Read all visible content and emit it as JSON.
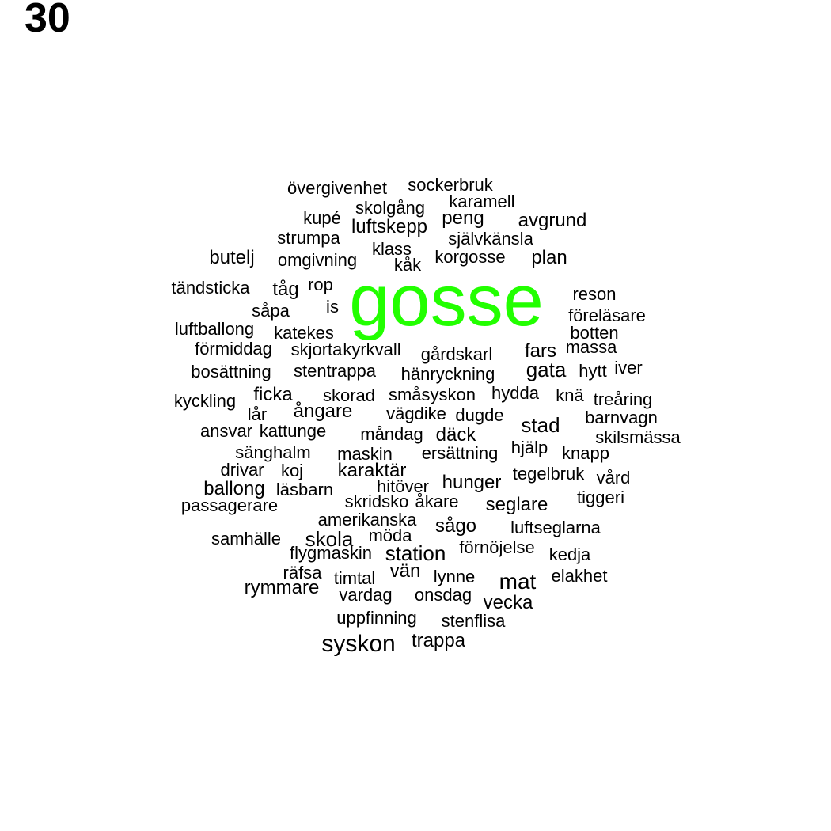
{
  "page_number": "30",
  "colors": {
    "highlight": "#22ff00",
    "text": "#000000",
    "background": "#ffffff"
  },
  "words": [
    {
      "text": "gosse",
      "highlight": true
    },
    {
      "text": "övergivenhet"
    },
    {
      "text": "sockerbruk"
    },
    {
      "text": "karamell"
    },
    {
      "text": "skolgång"
    },
    {
      "text": "kupé"
    },
    {
      "text": "peng"
    },
    {
      "text": "avgrund"
    },
    {
      "text": "luftskepp"
    },
    {
      "text": "strumpa"
    },
    {
      "text": "självkänsla"
    },
    {
      "text": "klass"
    },
    {
      "text": "butelj"
    },
    {
      "text": "omgivning"
    },
    {
      "text": "korgosse"
    },
    {
      "text": "plan"
    },
    {
      "text": "kåk"
    },
    {
      "text": "tändsticka"
    },
    {
      "text": "tåg"
    },
    {
      "text": "rop"
    },
    {
      "text": "reson"
    },
    {
      "text": "såpa"
    },
    {
      "text": "is"
    },
    {
      "text": "föreläsare"
    },
    {
      "text": "luftballong"
    },
    {
      "text": "katekes"
    },
    {
      "text": "botten"
    },
    {
      "text": "förmiddag"
    },
    {
      "text": "skjorta"
    },
    {
      "text": "kyrkvall"
    },
    {
      "text": "gårdskarl"
    },
    {
      "text": "fars"
    },
    {
      "text": "massa"
    },
    {
      "text": "bosättning"
    },
    {
      "text": "stentrappa"
    },
    {
      "text": "hänryckning"
    },
    {
      "text": "gata"
    },
    {
      "text": "hytt"
    },
    {
      "text": "iver"
    },
    {
      "text": "kyckling"
    },
    {
      "text": "ficka"
    },
    {
      "text": "skorad"
    },
    {
      "text": "småsyskon"
    },
    {
      "text": "hydda"
    },
    {
      "text": "knä"
    },
    {
      "text": "treåring"
    },
    {
      "text": "lår"
    },
    {
      "text": "ångare"
    },
    {
      "text": "vägdike"
    },
    {
      "text": "dugde"
    },
    {
      "text": "stad"
    },
    {
      "text": "barnvagn"
    },
    {
      "text": "ansvar"
    },
    {
      "text": "kattunge"
    },
    {
      "text": "måndag"
    },
    {
      "text": "däck"
    },
    {
      "text": "skilsmässa"
    },
    {
      "text": "sänghalm"
    },
    {
      "text": "maskin"
    },
    {
      "text": "ersättning"
    },
    {
      "text": "hjälp"
    },
    {
      "text": "knapp"
    },
    {
      "text": "drivar"
    },
    {
      "text": "koj"
    },
    {
      "text": "karaktär"
    },
    {
      "text": "tegelbruk"
    },
    {
      "text": "vård"
    },
    {
      "text": "ballong"
    },
    {
      "text": "läsbarn"
    },
    {
      "text": "hitöver"
    },
    {
      "text": "hunger"
    },
    {
      "text": "tiggeri"
    },
    {
      "text": "passagerare"
    },
    {
      "text": "skridsko"
    },
    {
      "text": "åkare"
    },
    {
      "text": "seglare"
    },
    {
      "text": "amerikanska"
    },
    {
      "text": "sågo"
    },
    {
      "text": "luftseglarna"
    },
    {
      "text": "samhälle"
    },
    {
      "text": "skola"
    },
    {
      "text": "möda"
    },
    {
      "text": "förnöjelse"
    },
    {
      "text": "flygmaskin"
    },
    {
      "text": "station"
    },
    {
      "text": "kedja"
    },
    {
      "text": "räfsa"
    },
    {
      "text": "vän"
    },
    {
      "text": "timtal"
    },
    {
      "text": "lynne"
    },
    {
      "text": "elakhet"
    },
    {
      "text": "mat"
    },
    {
      "text": "rymmare"
    },
    {
      "text": "vardag"
    },
    {
      "text": "onsdag"
    },
    {
      "text": "vecka"
    },
    {
      "text": "uppfinning"
    },
    {
      "text": "stenflisa"
    },
    {
      "text": "syskon"
    },
    {
      "text": "trappa"
    }
  ]
}
